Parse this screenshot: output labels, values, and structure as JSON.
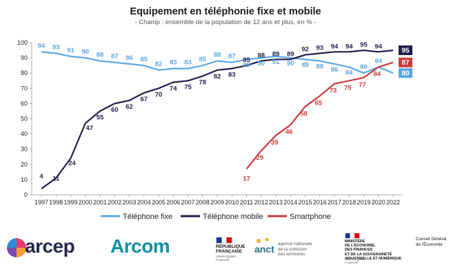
{
  "chart_data": {
    "type": "line",
    "title": "Equipement en téléphonie fixe et mobile",
    "subtitle": "- Champ : ensemble de la population de 12 ans et plus, en % -",
    "xlabel": "",
    "ylabel": "",
    "ylim": [
      0,
      100
    ],
    "yticks": [
      0,
      10,
      20,
      30,
      40,
      50,
      60,
      70,
      80,
      90,
      100
    ],
    "grid": false,
    "legend_position": "bottom",
    "x": [
      "1997",
      "1998",
      "1999",
      "2000",
      "2001",
      "2002",
      "2003",
      "2004",
      "2005",
      "2006",
      "2007",
      "2008",
      "2009",
      "2010",
      "2011",
      "2012",
      "2013",
      "2014",
      "2015",
      "2016",
      "2017",
      "2018",
      "2019",
      "2020",
      "2022"
    ],
    "series": [
      {
        "name": "Téléphone fixe",
        "color": "#5aa6e6",
        "values": [
          94,
          93,
          91,
          90,
          88,
          87,
          86,
          85,
          82,
          83,
          83,
          85,
          88,
          87,
          89,
          90,
          91,
          90,
          89,
          88,
          86,
          84,
          80,
          84,
          80
        ],
        "labels": [
          "94",
          "93",
          "91",
          "90",
          "88",
          "87",
          "86",
          "85",
          "82",
          "83",
          "83",
          "85",
          "88",
          "87",
          "89",
          "90",
          "91",
          "90",
          "89",
          "88",
          "86",
          "84",
          "80",
          "84",
          "80"
        ]
      },
      {
        "name": "Téléphone mobile",
        "color": "#1f1f4a",
        "values": [
          4,
          11,
          24,
          47,
          55,
          60,
          62,
          67,
          70,
          74,
          75,
          78,
          82,
          83,
          85,
          88,
          89,
          89,
          92,
          93,
          94,
          94,
          95,
          94,
          95
        ],
        "labels": [
          "4",
          "11",
          "24",
          "47",
          "55",
          "60",
          "62",
          "67",
          "70",
          "74",
          "75",
          "78",
          "82",
          "83",
          "85",
          "88",
          "89",
          "89",
          "92",
          "93",
          "94",
          "94",
          "95",
          "94",
          "95"
        ]
      },
      {
        "name": "Smartphone",
        "color": "#cc3a3a",
        "values": [
          null,
          null,
          null,
          null,
          null,
          null,
          null,
          null,
          null,
          null,
          null,
          null,
          null,
          null,
          17,
          29,
          39,
          46,
          58,
          65,
          73,
          75,
          77,
          84,
          87
        ],
        "labels": [
          "",
          "",
          "",
          "",
          "",
          "",
          "",
          "",
          "",
          "",
          "",
          "",
          "",
          "",
          "17",
          "29",
          "39",
          "46",
          "58",
          "65",
          "73",
          "75",
          "77",
          "84",
          "87"
        ]
      }
    ]
  },
  "logos": {
    "arcep": "arcep",
    "arcom": "Arcom",
    "republique_line1": "RÉPUBLIQUE",
    "republique_line2": "FRANÇAISE",
    "republique_motto": "Liberté Égalité Fraternité",
    "anct_mark": "anct",
    "anct_line1": "agence nationale",
    "anct_line2": "de la cohésion",
    "anct_line3": "des territoires",
    "ministere_line1": "MINISTÈRE",
    "ministere_line2": "DE L'ÉCONOMIE,",
    "ministere_line3": "DES FINANCES",
    "ministere_line4": "ET DE LA SOUVERAINETÉ",
    "ministere_line5": "INDUSTRIELLE ET NUMÉRIQUE",
    "ministere_motto": "Liberté Égalité Fraternité",
    "cge_line1": "Conseil Général",
    "cge_line2": "de l'Économie"
  }
}
